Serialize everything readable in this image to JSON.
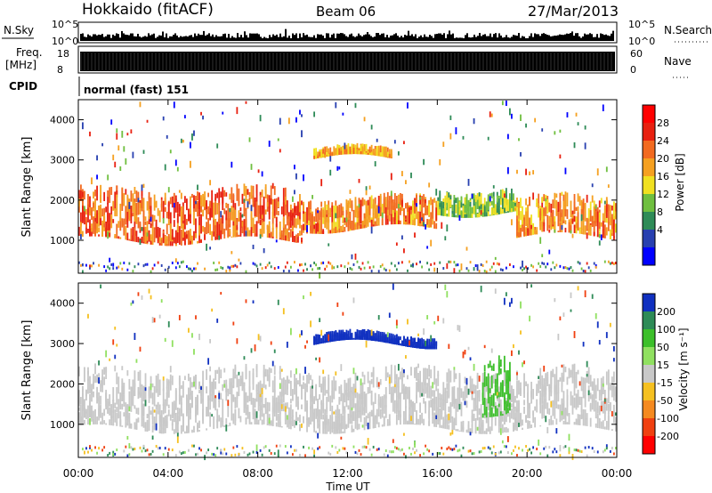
{
  "header": {
    "station": "Hokkaido (fitACF)",
    "beam": "Beam 06",
    "date": "27/Mar/2013"
  },
  "top_panels": {
    "nsky_label": "N.Sky",
    "nsky_ticks": [
      "10^5",
      "10^0"
    ],
    "nsearch_label": "N.Search",
    "nsearch_ticks": [
      "10^5",
      "10^0"
    ],
    "freq_label": "Freq.",
    "freq_unit": "[MHz]",
    "freq_ticks": [
      "18",
      "8"
    ],
    "nave_label": "Nave",
    "nave_ticks": [
      "60",
      "0"
    ],
    "cpid_label": "CPID",
    "cpid_text": "normal (fast) 151"
  },
  "chart_data": [
    {
      "type": "heatmap",
      "name": "power-panel",
      "ylabel": "Slant Range [km]",
      "ylim": [
        180,
        4500
      ],
      "yticks": [
        1000,
        2000,
        3000,
        4000
      ],
      "colorbar_label": "Power [dB]",
      "colorbar_ticks": [
        "4",
        "8",
        "12",
        "16",
        "20",
        "24",
        "28"
      ],
      "colorbar_colors": [
        "#0000ff",
        "#2840b0",
        "#2e8b57",
        "#6fbf3f",
        "#f0e020",
        "#f5a020",
        "#f26a20",
        "#e82010",
        "#ff0000"
      ],
      "description_bands": [
        {
          "x0": 0,
          "x1": 10,
          "y0": 1000,
          "y1": 2300,
          "value": 24
        },
        {
          "x0": 10,
          "x1": 16,
          "y0": 1300,
          "y1": 2100,
          "value": 22
        },
        {
          "x0": 10.5,
          "x1": 14,
          "y0": 3050,
          "y1": 3300,
          "value": 20
        },
        {
          "x0": 16,
          "x1": 19.5,
          "y0": 1700,
          "y1": 2300,
          "value": 12
        },
        {
          "x0": 19.5,
          "x1": 24,
          "y0": 1100,
          "y1": 2100,
          "value": 22
        }
      ]
    },
    {
      "type": "heatmap",
      "name": "velocity-panel",
      "ylabel": "Slant Range [km]",
      "ylim": [
        180,
        4500
      ],
      "yticks": [
        1000,
        2000,
        3000,
        4000
      ],
      "xlabel": "Time UT",
      "xticks": [
        "00:00",
        "04:00",
        "08:00",
        "12:00",
        "16:00",
        "20:00",
        "00:00"
      ],
      "xlim": [
        0,
        24
      ],
      "colorbar_label": "Velocity [m s⁻¹]",
      "colorbar_ticks": [
        "200",
        "100",
        "50",
        "15",
        "-15",
        "-50",
        "-100",
        "-200"
      ],
      "colorbar_colors": [
        "#1030c0",
        "#2e8b57",
        "#3cbf2a",
        "#90e060",
        "#c8c8c8",
        "#f5c020",
        "#f58a20",
        "#f04010",
        "#ff0000"
      ],
      "description_bands": [
        {
          "x0": 0,
          "x1": 24,
          "y0": 900,
          "y1": 2400,
          "value": 0
        },
        {
          "x0": 10.5,
          "x1": 16,
          "y0": 3000,
          "y1": 3250,
          "value": 200
        },
        {
          "x0": 18,
          "x1": 19.3,
          "y0": 1300,
          "y1": 2800,
          "value": 50
        }
      ]
    }
  ]
}
